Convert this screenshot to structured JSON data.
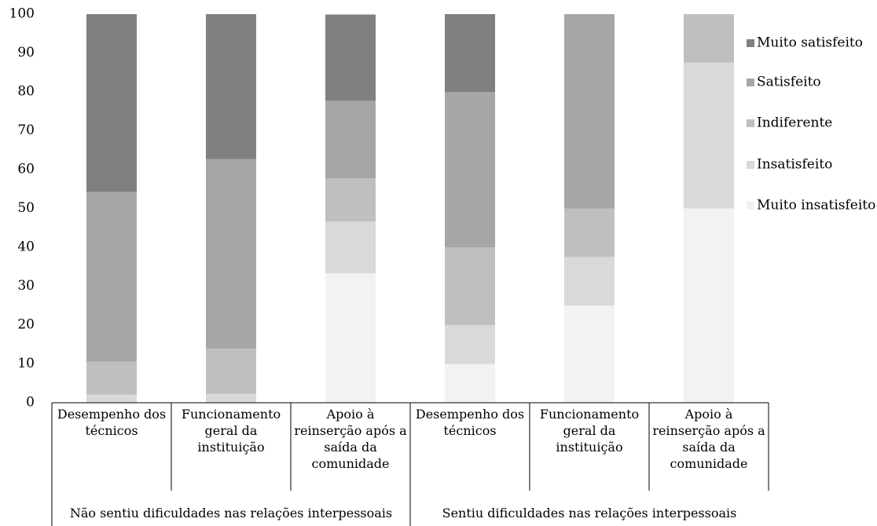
{
  "chart_data": {
    "type": "stacked_bar",
    "categories": [
      "Desempenho dos técnicos",
      "Funcionamento geral da instituição",
      "Apoio à reinserção após a saída da comunidade",
      "Desempenho dos técnicos",
      "Funcionamento geral da instituição",
      "Apoio à reinserção após a saída da comunidade"
    ],
    "group_labels": [
      "Não sentiu dificuldades nas relações interpessoais",
      "Sentiu dificuldades nas relações interpessoais"
    ],
    "series": [
      {
        "name": "Muito insatisfeito",
        "color": "#f2f2f2",
        "values": [
          0,
          0,
          33.3,
          10,
          25,
          50
        ]
      },
      {
        "name": "Insatisfeito",
        "color": "#d9d9d9",
        "values": [
          2.1,
          2.3,
          13.3,
          10,
          12.5,
          37.5
        ]
      },
      {
        "name": "Indiferente",
        "color": "#bfbfbf",
        "values": [
          8.5,
          11.6,
          11.1,
          20,
          12.5,
          12.5
        ]
      },
      {
        "name": "Satisfeito",
        "color": "#a6a6a6",
        "values": [
          43.6,
          48.8,
          20,
          40,
          50,
          0
        ]
      },
      {
        "name": "Muito satisfeito",
        "color": "#808080",
        "values": [
          45.8,
          37.3,
          22.2,
          20,
          0,
          0
        ]
      }
    ],
    "ylim": [
      0,
      100
    ],
    "yticks": [
      0,
      10,
      20,
      30,
      40,
      50,
      60,
      70,
      80,
      90,
      100
    ],
    "legend": "right"
  }
}
